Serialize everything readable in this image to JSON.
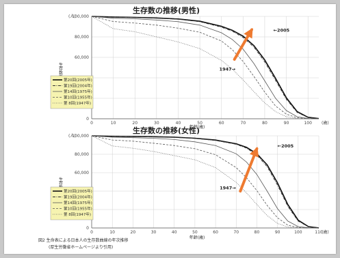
{
  "chart_data": [
    {
      "type": "line",
      "title": "生存数の推移(男性)",
      "xlabel": "年齢(歳)",
      "ylabel": "生存数(lx)",
      "y_unit": "(人)",
      "x_unit_end": "(歳)",
      "xlim": [
        0,
        105
      ],
      "ylim": [
        0,
        100000
      ],
      "x_ticks": [
        "0",
        "10",
        "20",
        "30",
        "40",
        "50",
        "60",
        "70",
        "80",
        "90",
        "100"
      ],
      "y_ticks": [
        "0",
        "20,000",
        "40,000",
        "60,000",
        "80,000",
        "100,000"
      ],
      "annotations": [
        {
          "text": "←2005",
          "x": 84,
          "y": 85000
        },
        {
          "text": "1947→",
          "x": 59,
          "y": 47000
        }
      ],
      "arrow": {
        "from": [
          66,
          58000
        ],
        "to": [
          74,
          87000
        ]
      },
      "series": [
        {
          "name": "第20回(2005年)",
          "style": "solid-thick",
          "x": [
            0,
            10,
            20,
            30,
            40,
            50,
            60,
            65,
            70,
            75,
            80,
            85,
            90,
            95,
            100,
            105
          ],
          "y": [
            100000,
            99400,
            99000,
            98500,
            97500,
            95300,
            90300,
            86500,
            80700,
            71500,
            57500,
            39500,
            20500,
            7000,
            1500,
            200
          ]
        },
        {
          "name": "第19回(2004年)",
          "style": "dash-dot",
          "x": [
            0,
            10,
            20,
            30,
            40,
            50,
            60,
            65,
            70,
            75,
            80,
            85,
            90,
            95,
            100,
            105
          ],
          "y": [
            100000,
            99400,
            98900,
            98300,
            97200,
            94800,
            89500,
            85600,
            79500,
            70000,
            55500,
            37500,
            19000,
            6200,
            1200,
            150
          ]
        },
        {
          "name": "第14回(1975年)",
          "style": "solid",
          "x": [
            0,
            10,
            20,
            30,
            40,
            50,
            60,
            65,
            70,
            75,
            80,
            85,
            90,
            95,
            100,
            105
          ],
          "y": [
            100000,
            98200,
            97600,
            96500,
            94800,
            91500,
            84000,
            77500,
            68000,
            54000,
            37000,
            20000,
            8000,
            2000,
            300,
            0
          ]
        },
        {
          "name": "第10回(1955年)",
          "style": "dashed",
          "x": [
            0,
            10,
            20,
            30,
            40,
            50,
            60,
            65,
            70,
            75,
            80,
            85,
            90,
            95,
            100,
            105
          ],
          "y": [
            100000,
            95000,
            93500,
            91500,
            88500,
            84500,
            76000,
            67500,
            56000,
            41500,
            26000,
            12500,
            4500,
            1000,
            100,
            0
          ]
        },
        {
          "name": "第 8回(1947年)",
          "style": "dotted",
          "x": [
            0,
            10,
            20,
            30,
            40,
            50,
            60,
            65,
            70,
            75,
            80,
            85,
            90,
            95,
            100,
            105
          ],
          "y": [
            100000,
            88000,
            85000,
            80000,
            75000,
            68500,
            57000,
            48500,
            38000,
            26500,
            15500,
            7000,
            2000,
            300,
            0,
            0
          ]
        }
      ]
    },
    {
      "type": "line",
      "title": "生存数の推移(女性)",
      "xlabel": "年齢(歳)",
      "ylabel": "生存数(lx)",
      "y_unit": "(人)",
      "x_unit_end": "(歳)",
      "xlim": [
        0,
        110
      ],
      "ylim": [
        0,
        100000
      ],
      "x_ticks": [
        "0",
        "10",
        "20",
        "30",
        "40",
        "50",
        "60",
        "70",
        "80",
        "90",
        "100",
        "110"
      ],
      "y_ticks": [
        "0",
        "20,000",
        "40,000",
        "60,000",
        "80,000",
        "100,000"
      ],
      "annotations": [
        {
          "text": "←2005",
          "x": 90,
          "y": 87500
        },
        {
          "text": "1947→",
          "x": 62,
          "y": 42000
        }
      ],
      "arrow": {
        "from": [
          72,
          40000
        ],
        "to": [
          80,
          86000
        ]
      },
      "series": [
        {
          "name": "第20回(2005年)",
          "style": "solid-thick",
          "x": [
            0,
            10,
            20,
            30,
            40,
            50,
            60,
            70,
            75,
            80,
            85,
            90,
            95,
            100,
            105,
            110
          ],
          "y": [
            100000,
            99500,
            99300,
            99000,
            98500,
            97400,
            95400,
            91400,
            87500,
            80500,
            68500,
            49000,
            25500,
            8500,
            1500,
            100
          ]
        },
        {
          "name": "第19回(2004年)",
          "style": "dash-dot",
          "x": [
            0,
            10,
            20,
            30,
            40,
            50,
            60,
            70,
            75,
            80,
            85,
            90,
            95,
            100,
            105,
            110
          ],
          "y": [
            100000,
            99500,
            99200,
            98900,
            98300,
            97200,
            95000,
            90800,
            86600,
            79200,
            66500,
            46500,
            23500,
            7500,
            1200,
            80
          ]
        },
        {
          "name": "第14回(1975年)",
          "style": "solid",
          "x": [
            0,
            10,
            20,
            30,
            40,
            50,
            60,
            70,
            75,
            80,
            85,
            90,
            95,
            100,
            105,
            110
          ],
          "y": [
            100000,
            98500,
            98000,
            97300,
            96000,
            93500,
            89500,
            80500,
            71500,
            58000,
            40000,
            21000,
            7500,
            1500,
            200,
            0
          ]
        },
        {
          "name": "第10回(1955年)",
          "style": "dashed",
          "x": [
            0,
            10,
            20,
            30,
            40,
            50,
            60,
            70,
            75,
            80,
            85,
            90,
            95,
            100,
            105,
            110
          ],
          "y": [
            100000,
            95500,
            94200,
            92000,
            89500,
            86000,
            79500,
            65500,
            54500,
            40500,
            24500,
            11000,
            3000,
            500,
            0,
            0
          ]
        },
        {
          "name": "第 8回(1947年)",
          "style": "dotted",
          "x": [
            0,
            10,
            20,
            30,
            40,
            50,
            60,
            70,
            75,
            80,
            85,
            90,
            95,
            100,
            105,
            110
          ],
          "y": [
            100000,
            89000,
            86500,
            83000,
            78500,
            74000,
            65500,
            49500,
            38000,
            25500,
            13500,
            5000,
            1000,
            100,
            0,
            0
          ]
        }
      ]
    }
  ],
  "caption": {
    "line1": "図2 生命表による日本人の生存数曲線の年次推移",
    "line2": "(厚生労働省ホームページより引用)"
  },
  "colors": {
    "arrow": "#ee7a30",
    "legend_bg": "#f6f3b0",
    "slide_bg": "#ffffff",
    "outer_bg": "#c9c9c9"
  }
}
